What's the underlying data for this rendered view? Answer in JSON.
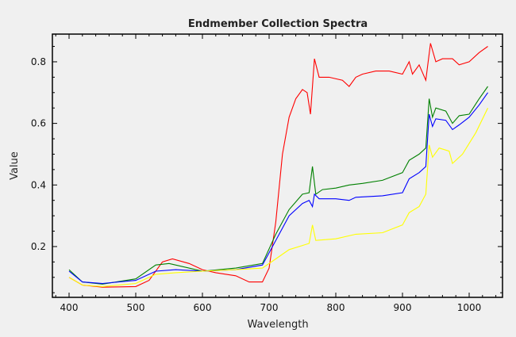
{
  "chart_data": {
    "type": "line",
    "title": "Endmember Collection Spectra",
    "xlabel": "Wavelength",
    "ylabel": "Value",
    "xlim": [
      375,
      1050
    ],
    "ylim": [
      0.035,
      0.89
    ],
    "xticks": [
      400,
      500,
      600,
      700,
      800,
      900,
      1000
    ],
    "yticks": [
      0.2,
      0.4,
      0.6,
      0.8
    ],
    "grid": false,
    "legend": "none",
    "series": [
      {
        "color": "#ff0000",
        "x": [
          400,
          420,
          450,
          500,
          520,
          540,
          555,
          580,
          600,
          620,
          650,
          670,
          690,
          700,
          710,
          720,
          730,
          740,
          750,
          757,
          762,
          768,
          775,
          790,
          810,
          820,
          830,
          840,
          860,
          880,
          900,
          910,
          915,
          925,
          935,
          942,
          950,
          960,
          975,
          985,
          1000,
          1015,
          1028
        ],
        "y": [
          0.1,
          0.075,
          0.068,
          0.07,
          0.09,
          0.15,
          0.16,
          0.145,
          0.125,
          0.115,
          0.105,
          0.085,
          0.085,
          0.13,
          0.28,
          0.5,
          0.62,
          0.68,
          0.71,
          0.7,
          0.63,
          0.81,
          0.75,
          0.75,
          0.74,
          0.72,
          0.75,
          0.76,
          0.77,
          0.77,
          0.76,
          0.8,
          0.76,
          0.79,
          0.74,
          0.86,
          0.8,
          0.81,
          0.81,
          0.79,
          0.8,
          0.83,
          0.85
        ]
      },
      {
        "color": "#008000",
        "x": [
          400,
          420,
          450,
          500,
          530,
          550,
          600,
          650,
          690,
          710,
          730,
          750,
          760,
          765,
          770,
          780,
          800,
          820,
          840,
          870,
          900,
          910,
          925,
          935,
          940,
          945,
          950,
          965,
          975,
          985,
          1000,
          1015,
          1028
        ],
        "y": [
          0.125,
          0.085,
          0.078,
          0.095,
          0.14,
          0.145,
          0.12,
          0.13,
          0.145,
          0.24,
          0.32,
          0.37,
          0.375,
          0.46,
          0.37,
          0.385,
          0.39,
          0.4,
          0.405,
          0.415,
          0.44,
          0.48,
          0.5,
          0.52,
          0.68,
          0.62,
          0.65,
          0.64,
          0.6,
          0.625,
          0.63,
          0.68,
          0.72
        ]
      },
      {
        "color": "#0000ff",
        "x": [
          400,
          420,
          450,
          500,
          530,
          560,
          600,
          650,
          690,
          710,
          730,
          750,
          760,
          765,
          768,
          775,
          800,
          820,
          830,
          870,
          900,
          910,
          925,
          935,
          940,
          945,
          950,
          965,
          975,
          985,
          1000,
          1015,
          1028
        ],
        "y": [
          0.12,
          0.085,
          0.08,
          0.09,
          0.12,
          0.125,
          0.12,
          0.125,
          0.14,
          0.22,
          0.3,
          0.34,
          0.35,
          0.33,
          0.37,
          0.355,
          0.355,
          0.35,
          0.36,
          0.365,
          0.375,
          0.42,
          0.44,
          0.46,
          0.63,
          0.59,
          0.615,
          0.61,
          0.58,
          0.595,
          0.62,
          0.66,
          0.7
        ]
      },
      {
        "color": "#ffff00",
        "x": [
          400,
          420,
          450,
          500,
          530,
          560,
          600,
          650,
          690,
          710,
          730,
          760,
          765,
          770,
          800,
          830,
          870,
          900,
          910,
          925,
          935,
          940,
          945,
          955,
          970,
          975,
          990,
          1010,
          1028
        ],
        "y": [
          0.1,
          0.075,
          0.07,
          0.08,
          0.11,
          0.115,
          0.12,
          0.125,
          0.13,
          0.16,
          0.19,
          0.21,
          0.27,
          0.22,
          0.225,
          0.24,
          0.245,
          0.27,
          0.31,
          0.33,
          0.37,
          0.53,
          0.49,
          0.52,
          0.51,
          0.47,
          0.5,
          0.57,
          0.65
        ]
      }
    ]
  }
}
